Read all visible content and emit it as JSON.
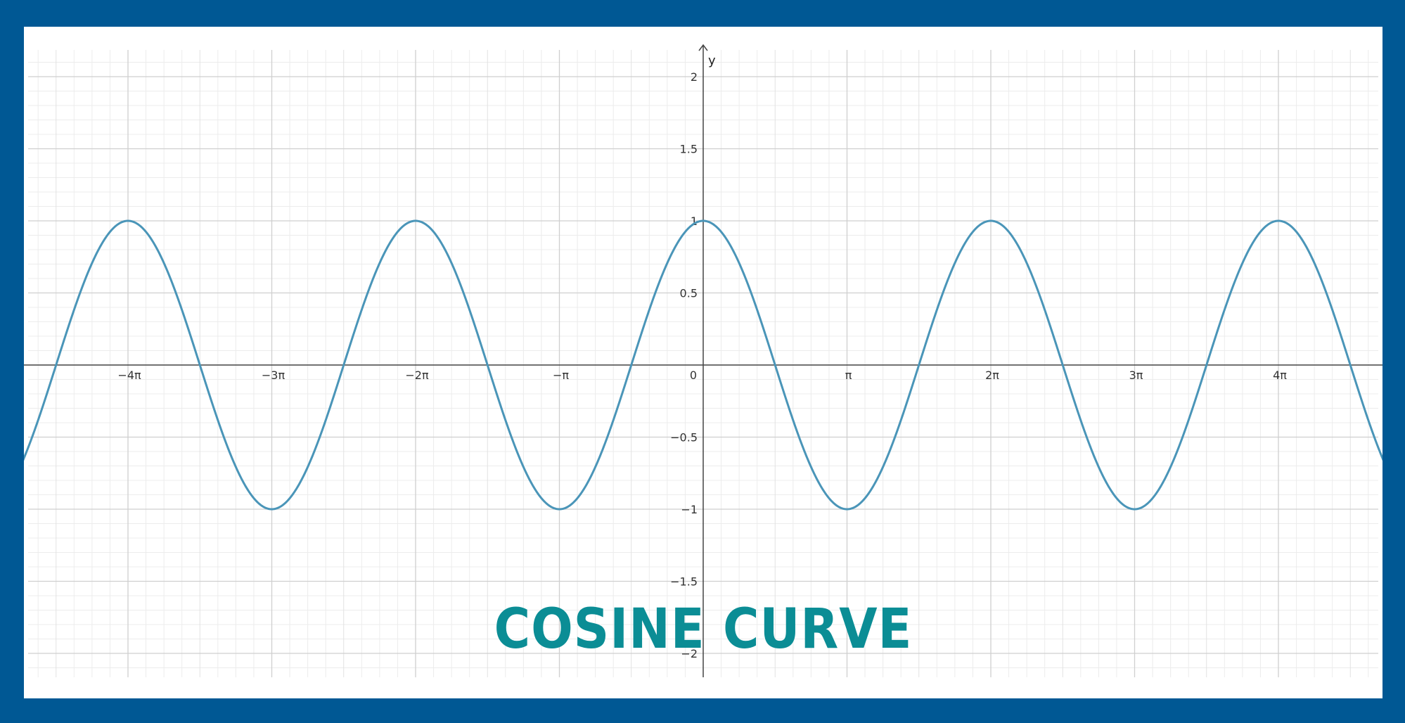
{
  "colors": {
    "border": "#005894",
    "curve": "#4a95b8",
    "title": "#0b8d95"
  },
  "chart_data": {
    "type": "line",
    "title": "COSINE CURVE",
    "xlabel": "",
    "ylabel": "y",
    "function": "cos(x)",
    "xlim": [
      -15.1,
      15.1
    ],
    "ylim": [
      -2.15,
      2.2
    ],
    "grid": true,
    "x_ticks": [
      {
        "value": -12.566,
        "label": "−4π"
      },
      {
        "value": -9.425,
        "label": "−3π"
      },
      {
        "value": -6.283,
        "label": "−2π"
      },
      {
        "value": -3.142,
        "label": "−π"
      },
      {
        "value": 3.142,
        "label": "π"
      },
      {
        "value": 6.283,
        "label": "2π"
      },
      {
        "value": 9.425,
        "label": "3π"
      },
      {
        "value": 12.566,
        "label": "4π"
      }
    ],
    "origin_label": "0",
    "y_ticks": [
      {
        "value": 2,
        "label": "2"
      },
      {
        "value": 1.5,
        "label": "1.5"
      },
      {
        "value": 1,
        "label": "1"
      },
      {
        "value": 0.5,
        "label": "0.5"
      },
      {
        "value": -0.5,
        "label": "−0.5"
      },
      {
        "value": -1,
        "label": "−1"
      },
      {
        "value": -1.5,
        "label": "−1.5"
      },
      {
        "value": -2,
        "label": "−2"
      }
    ],
    "series": [
      {
        "x": [
          -15.1,
          -12.566,
          -11.0,
          -9.425,
          -7.854,
          -6.283,
          -4.712,
          -3.142,
          -1.571,
          0,
          1.571,
          3.142,
          4.712,
          6.283,
          7.854,
          9.425,
          11.0,
          12.566,
          14.137,
          15.1
        ],
        "y": [
          -0.82,
          1,
          0,
          -1,
          0,
          1,
          0,
          -1,
          0,
          1,
          0,
          -1,
          0,
          1,
          0,
          -1,
          0,
          1,
          0,
          -0.82
        ]
      }
    ]
  }
}
